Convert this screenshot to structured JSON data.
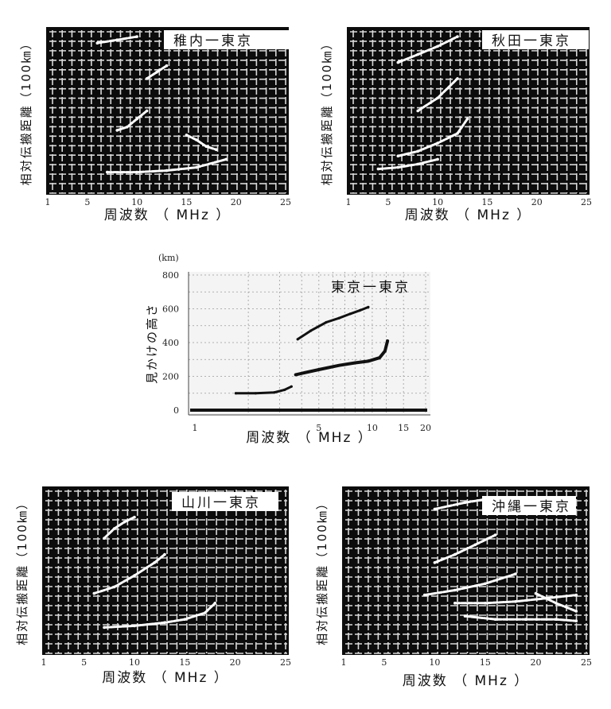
{
  "chart_data": [
    {
      "type": "scatter",
      "title": "稚内一東京",
      "ylabel": "相対伝搬距離（100㎞）",
      "xlabel": "周波数 （ MHz ）",
      "x_ticks": [
        "1",
        "5",
        "10",
        "15",
        "20",
        "25"
      ],
      "xlim": [
        1,
        25
      ],
      "ylim": [
        0,
        1
      ],
      "grid": true,
      "series": [
        {
          "x": [
            6,
            8,
            10
          ],
          "y": [
            0.92,
            0.94,
            0.96
          ]
        },
        {
          "x": [
            11,
            12,
            13
          ],
          "y": [
            0.7,
            0.74,
            0.78
          ]
        },
        {
          "x": [
            8,
            9,
            10,
            11
          ],
          "y": [
            0.38,
            0.4,
            0.45,
            0.5
          ]
        },
        {
          "x": [
            15,
            16,
            17,
            18
          ],
          "y": [
            0.35,
            0.32,
            0.28,
            0.26
          ]
        },
        {
          "x": [
            7,
            10,
            13,
            16,
            19
          ],
          "y": [
            0.12,
            0.12,
            0.13,
            0.15,
            0.2
          ]
        }
      ]
    },
    {
      "type": "scatter",
      "title": "秋田一東京",
      "ylabel": "相対伝搬距離（100㎞）",
      "xlabel": "周波数 （ MHz ）",
      "x_ticks": [
        "1",
        "5",
        "10",
        "15",
        "20",
        "25"
      ],
      "xlim": [
        1,
        25
      ],
      "ylim": [
        0,
        1
      ],
      "grid": true,
      "series": [
        {
          "x": [
            6,
            8,
            10,
            12
          ],
          "y": [
            0.8,
            0.85,
            0.9,
            0.96
          ]
        },
        {
          "x": [
            8,
            10,
            12
          ],
          "y": [
            0.5,
            0.58,
            0.7
          ]
        },
        {
          "x": [
            6,
            8,
            10,
            12,
            13
          ],
          "y": [
            0.22,
            0.25,
            0.3,
            0.36,
            0.45
          ]
        },
        {
          "x": [
            4,
            6,
            8,
            10
          ],
          "y": [
            0.14,
            0.15,
            0.17,
            0.2
          ]
        }
      ]
    },
    {
      "type": "scatter",
      "title": "東京一東京",
      "ylabel": "見かけの高さ",
      "y_unit": "(km)",
      "xlabel": "周波数 （ MHz ）",
      "x_ticks": [
        "1",
        "5",
        "10",
        "15",
        "20"
      ],
      "x_scale": "log",
      "y_ticks": [
        "0",
        "200",
        "400",
        "600",
        "800"
      ],
      "ylim": [
        0,
        800
      ],
      "grid": true,
      "series": [
        {
          "x": [
            1.7,
            2.2,
            2.8,
            3.2,
            3.5
          ],
          "y": [
            100,
            100,
            105,
            120,
            140
          ]
        },
        {
          "x": [
            3.7,
            5,
            6.5,
            8,
            9.5,
            11,
            11.8,
            12.2
          ],
          "y": [
            210,
            240,
            265,
            280,
            290,
            310,
            350,
            410
          ]
        },
        {
          "x": [
            3.8,
            4.5,
            5.5,
            6.5,
            7.5,
            8.5,
            9.5
          ],
          "y": [
            420,
            470,
            520,
            545,
            570,
            590,
            610
          ]
        }
      ]
    },
    {
      "type": "scatter",
      "title": "山川一東京",
      "ylabel": "相対伝搬距離（100㎞）",
      "xlabel": "周波数 （ MHz ）",
      "x_ticks": [
        "1",
        "5",
        "10",
        "15",
        "20",
        "25"
      ],
      "xlim": [
        1,
        25
      ],
      "ylim": [
        0,
        1
      ],
      "grid": true,
      "series": [
        {
          "x": [
            7,
            8,
            9,
            10
          ],
          "y": [
            0.7,
            0.76,
            0.8,
            0.83
          ]
        },
        {
          "x": [
            6,
            8,
            10,
            12,
            13
          ],
          "y": [
            0.36,
            0.4,
            0.47,
            0.55,
            0.6
          ]
        },
        {
          "x": [
            7,
            10,
            13,
            15,
            17,
            18
          ],
          "y": [
            0.15,
            0.16,
            0.18,
            0.2,
            0.24,
            0.3
          ]
        }
      ]
    },
    {
      "type": "scatter",
      "title": "沖縄一東京",
      "ylabel": "相対伝搬距離（100㎞）",
      "xlabel": "周波数 （ MHz ）",
      "x_ticks": [
        "1",
        "5",
        "10",
        "15",
        "20",
        "25"
      ],
      "xlim": [
        1,
        25
      ],
      "ylim": [
        0,
        1
      ],
      "grid": true,
      "series": [
        {
          "x": [
            10,
            13,
            16
          ],
          "y": [
            0.88,
            0.92,
            0.95
          ]
        },
        {
          "x": [
            10,
            12,
            14,
            16
          ],
          "y": [
            0.55,
            0.6,
            0.66,
            0.72
          ]
        },
        {
          "x": [
            9,
            12,
            15,
            18
          ],
          "y": [
            0.35,
            0.38,
            0.42,
            0.48
          ]
        },
        {
          "x": [
            12,
            15,
            18,
            21,
            24
          ],
          "y": [
            0.3,
            0.3,
            0.31,
            0.33,
            0.35
          ]
        },
        {
          "x": [
            20,
            22,
            24
          ],
          "y": [
            0.36,
            0.3,
            0.25
          ]
        },
        {
          "x": [
            13,
            16,
            19,
            22,
            24
          ],
          "y": [
            0.22,
            0.2,
            0.2,
            0.2,
            0.19
          ]
        }
      ]
    }
  ]
}
